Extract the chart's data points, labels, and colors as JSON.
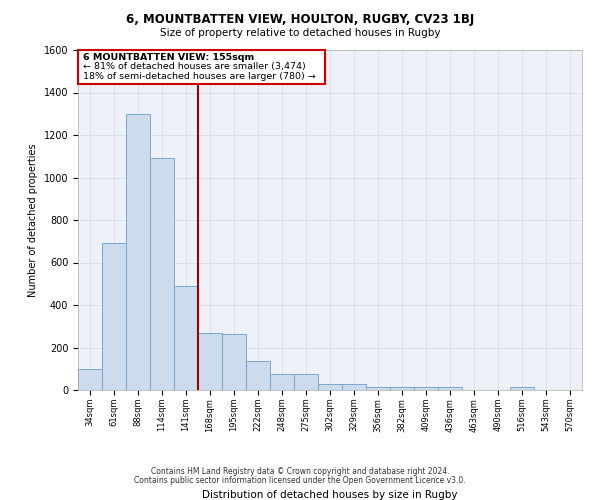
{
  "title1": "6, MOUNTBATTEN VIEW, HOULTON, RUGBY, CV23 1BJ",
  "title2": "Size of property relative to detached houses in Rugby",
  "xlabel": "Distribution of detached houses by size in Rugby",
  "ylabel": "Number of detached properties",
  "categories": [
    "34sqm",
    "61sqm",
    "88sqm",
    "114sqm",
    "141sqm",
    "168sqm",
    "195sqm",
    "222sqm",
    "248sqm",
    "275sqm",
    "302sqm",
    "329sqm",
    "356sqm",
    "382sqm",
    "409sqm",
    "436sqm",
    "463sqm",
    "490sqm",
    "516sqm",
    "543sqm",
    "570sqm"
  ],
  "values": [
    100,
    690,
    1300,
    1090,
    490,
    270,
    265,
    135,
    75,
    75,
    30,
    30,
    15,
    15,
    15,
    15,
    0,
    0,
    15,
    0,
    0
  ],
  "bar_color": "#ccdcee",
  "bar_edge_color": "#6a9fc8",
  "grid_color": "#d0d8e8",
  "bg_color": "#eef2f8",
  "vline_color": "#990000",
  "annotation_text1": "6 MOUNTBATTEN VIEW: 155sqm",
  "annotation_text2": "← 81% of detached houses are smaller (3,474)",
  "annotation_text3": "18% of semi-detached houses are larger (780) →",
  "annotation_box_color": "#cc0000",
  "ylim": [
    0,
    1600
  ],
  "yticks": [
    0,
    200,
    400,
    600,
    800,
    1000,
    1200,
    1400,
    1600
  ],
  "footer1": "Contains HM Land Registry data © Crown copyright and database right 2024.",
  "footer2": "Contains public sector information licensed under the Open Government Licence v3.0.",
  "vline_x_bar": 4,
  "property_sqm": 155,
  "bin_width": 27
}
